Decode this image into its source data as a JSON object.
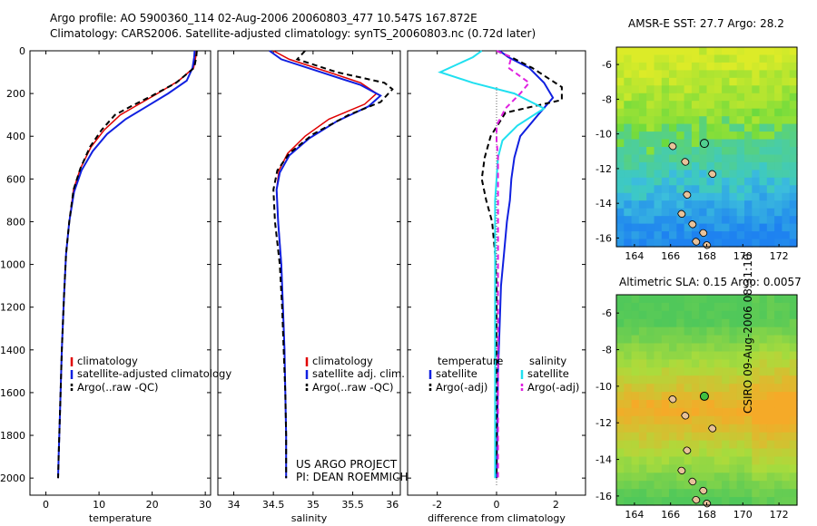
{
  "header": {
    "line1": "Argo profile: AO 5900360_114 02-Aug-2006 20060803_477 10.547S 167.872E",
    "line2": "Climatology: CARS2006. Satellite-adjusted climatology: synTS_20060803.nc (0.72d later)"
  },
  "colors": {
    "climatology": "#e00000",
    "satellite": "#1020e0",
    "argo": "#000000",
    "sal_satellite": "#20e0f0",
    "sal_argo": "#e020e0"
  },
  "chart_data": [
    {
      "type": "line",
      "xlabel": "temperature",
      "ylabel": "",
      "xlim": [
        -3,
        31
      ],
      "ylim": [
        2080,
        0
      ],
      "xticks": [
        0,
        10,
        20,
        30
      ],
      "yticks": [
        0,
        200,
        400,
        600,
        800,
        1000,
        1200,
        1400,
        1600,
        1800,
        2000
      ],
      "legend": [
        "climatology",
        "satellite-adjusted climatology",
        "Argo(..raw -QC)"
      ],
      "series": [
        {
          "name": "climatology",
          "x": [
            28.3,
            28.2,
            27.8,
            25.0,
            21.0,
            17.5,
            14.0,
            11.0,
            8.5,
            6.5,
            5.2,
            4.4,
            3.8,
            3.4,
            3.0,
            2.7,
            2.4,
            2.3
          ],
          "y": [
            0,
            30,
            80,
            140,
            200,
            250,
            300,
            370,
            450,
            550,
            650,
            800,
            950,
            1150,
            1400,
            1650,
            1900,
            2000
          ]
        },
        {
          "name": "satellite-adjusted climatology",
          "x": [
            28.0,
            27.9,
            27.6,
            26.5,
            23.0,
            19.0,
            15.0,
            11.5,
            8.8,
            6.7,
            5.3,
            4.4,
            3.8,
            3.4,
            3.0,
            2.7,
            2.4,
            2.3
          ],
          "y": [
            0,
            30,
            80,
            140,
            200,
            260,
            320,
            390,
            470,
            560,
            660,
            800,
            950,
            1150,
            1400,
            1650,
            1900,
            2000
          ]
        },
        {
          "name": "Argo(..raw -QC)",
          "x": [
            28.4,
            28.3,
            27.9,
            24.5,
            20.0,
            16.0,
            13.0,
            10.5,
            8.3,
            6.5,
            5.2,
            4.4,
            3.8,
            3.4,
            3.0,
            2.7,
            2.4,
            2.3
          ],
          "y": [
            0,
            30,
            80,
            150,
            210,
            260,
            300,
            370,
            450,
            550,
            650,
            800,
            950,
            1150,
            1400,
            1650,
            1900,
            2000
          ]
        }
      ]
    },
    {
      "type": "line",
      "xlabel": "salinity",
      "xlim": [
        33.8,
        36.1
      ],
      "ylim": [
        2080,
        0
      ],
      "xticks": [
        34,
        34.5,
        35,
        35.5,
        36
      ],
      "legend": [
        "climatology",
        "satellite adj. clim.",
        "Argo(..raw -QC)"
      ],
      "series": [
        {
          "name": "climatology",
          "x": [
            34.5,
            34.7,
            35.2,
            35.6,
            35.8,
            35.65,
            35.2,
            34.9,
            34.68,
            34.57,
            34.54,
            34.56,
            34.6,
            34.62,
            34.64,
            34.65,
            34.66,
            34.66
          ],
          "y": [
            0,
            40,
            100,
            150,
            200,
            250,
            320,
            400,
            480,
            560,
            650,
            800,
            1000,
            1200,
            1400,
            1600,
            1800,
            2000
          ]
        },
        {
          "name": "satellite adj. clim.",
          "x": [
            34.45,
            34.6,
            35.1,
            35.6,
            35.85,
            35.7,
            35.3,
            34.95,
            34.7,
            34.58,
            34.54,
            34.56,
            34.6,
            34.62,
            34.64,
            34.65,
            34.66,
            34.66
          ],
          "y": [
            0,
            40,
            100,
            160,
            210,
            260,
            330,
            410,
            490,
            570,
            650,
            800,
            1000,
            1200,
            1400,
            1600,
            1800,
            2000
          ]
        },
        {
          "name": "Argo(..raw -QC)",
          "x": [
            34.9,
            34.8,
            35.3,
            35.9,
            36.0,
            35.85,
            35.45,
            35.0,
            34.7,
            34.55,
            34.5,
            34.52,
            34.58,
            34.61,
            34.63,
            34.65,
            34.66,
            34.66
          ],
          "y": [
            0,
            40,
            100,
            150,
            180,
            240,
            300,
            390,
            480,
            560,
            650,
            800,
            1000,
            1200,
            1400,
            1600,
            1800,
            2000
          ]
        }
      ]
    },
    {
      "type": "line",
      "xlabel": "difference from climatology",
      "xlim": [
        -3,
        3
      ],
      "ylim": [
        2080,
        0
      ],
      "xticks": [
        -2,
        0,
        2
      ],
      "legend": [
        "temperature",
        "satellite",
        "Argo(-adj)",
        "salinity",
        "satellite",
        "Argo(-adj)"
      ],
      "series": [
        {
          "name": "satellite",
          "x": [
            0.1,
            0.4,
            1.1,
            1.6,
            1.9,
            1.4,
            0.8,
            0.6,
            0.5,
            0.45,
            0.35,
            0.25,
            0.15,
            0.1,
            0.05,
            0.02,
            0.0
          ],
          "y": [
            0,
            30,
            80,
            150,
            220,
            300,
            400,
            500,
            600,
            700,
            800,
            950,
            1100,
            1300,
            1500,
            1800,
            2000
          ]
        },
        {
          "name": "Argo(-adj)",
          "x": [
            0.0,
            0.5,
            1.2,
            2.2,
            2.2,
            0.3,
            -0.2,
            -0.4,
            -0.5,
            -0.35,
            -0.15,
            -0.05,
            0.0,
            0.0,
            0.0,
            0.0,
            0.0
          ],
          "y": [
            0,
            30,
            80,
            170,
            230,
            290,
            400,
            500,
            600,
            700,
            800,
            950,
            1100,
            1300,
            1500,
            1800,
            2000
          ]
        },
        {
          "name": "satellite",
          "x": [
            -0.5,
            -0.8,
            -1.9,
            -0.8,
            0.6,
            1.6,
            0.7,
            0.2,
            0.05,
            0.0,
            -0.05,
            -0.05,
            -0.05,
            -0.05,
            -0.05,
            -0.05,
            -0.05
          ],
          "y": [
            0,
            30,
            100,
            150,
            200,
            270,
            350,
            420,
            500,
            600,
            700,
            850,
            1000,
            1200,
            1400,
            1700,
            2000
          ]
        },
        {
          "name": "Argo(-adj)",
          "x": [
            0.0,
            0.5,
            0.4,
            1.1,
            0.8,
            0.3,
            0.0,
            0.0,
            0.05,
            0.05,
            0.05,
            0.05,
            0.05,
            0.05,
            0.05,
            0.05,
            0.05
          ],
          "y": [
            0,
            30,
            80,
            150,
            200,
            270,
            350,
            420,
            500,
            600,
            700,
            850,
            1000,
            1200,
            1400,
            1700,
            2000
          ]
        }
      ]
    },
    {
      "type": "heatmap",
      "title": "AMSR-E SST: 27.7 Argo: 28.2",
      "xlim": [
        163,
        173
      ],
      "ylim": [
        -16.5,
        -5
      ],
      "xticks": [
        164,
        166,
        168,
        170,
        172
      ],
      "yticks": [
        -6,
        -8,
        -10,
        -12,
        -14,
        -16
      ],
      "marker": {
        "lon": 167.872,
        "lat": -10.547
      }
    },
    {
      "type": "heatmap",
      "title": "Altimetric SLA: 0.15 Argo: 0.0057",
      "xlim": [
        163,
        173
      ],
      "ylim": [
        -16.5,
        -5
      ],
      "xticks": [
        164,
        166,
        168,
        170,
        172
      ],
      "yticks": [
        -6,
        -8,
        -10,
        -12,
        -14,
        -16
      ],
      "marker": {
        "lon": 167.872,
        "lat": -10.547
      }
    }
  ],
  "annotations": {
    "project": "US ARGO PROJECT",
    "pi": "PI: DEAN ROEMMICH",
    "stamp": "CSIRO 09-Aug-2006 08:31:10"
  }
}
